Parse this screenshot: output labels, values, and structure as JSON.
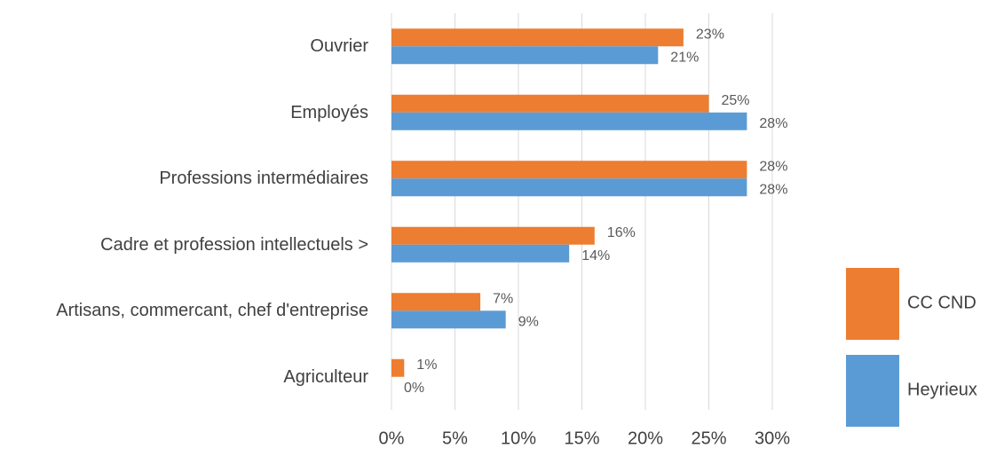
{
  "chart_data": {
    "type": "hbar",
    "categories": [
      "Ouvrier",
      "Employés",
      "Professions intermédiaires",
      "Cadre et profession intellectuels >",
      "Artisans, commercant, chef d'entreprise",
      "Agriculteur"
    ],
    "series": [
      {
        "name": "CC CND",
        "color": "#ed7d31",
        "values": [
          23,
          25,
          28,
          16,
          7,
          1
        ],
        "value_labels": [
          "23%",
          "25%",
          "28%",
          "16%",
          "7%",
          "1%"
        ]
      },
      {
        "name": "Heyrieux",
        "color": "#5b9bd5",
        "values": [
          21,
          28,
          28,
          14,
          9,
          0
        ],
        "value_labels": [
          "21%",
          "28%",
          "28%",
          "14%",
          "9%",
          "0%"
        ]
      }
    ],
    "xlim": [
      0,
      30
    ],
    "xticks": [
      {
        "value": 0,
        "label": "0%"
      },
      {
        "value": 5,
        "label": "5%"
      },
      {
        "value": 10,
        "label": "10%"
      },
      {
        "value": 15,
        "label": "15%"
      },
      {
        "value": 20,
        "label": "20%"
      },
      {
        "value": 25,
        "label": "25%"
      },
      {
        "value": 30,
        "label": "30%"
      }
    ],
    "grid": true,
    "legend": "right"
  }
}
